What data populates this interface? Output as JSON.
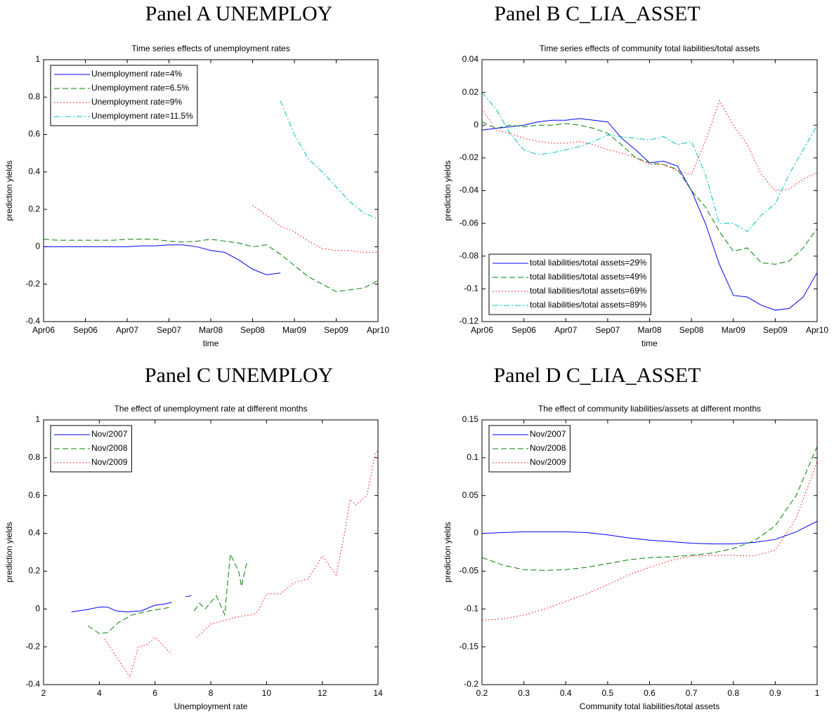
{
  "chart_data": [
    {
      "type": "line",
      "heading": "Panel A UNEMPLOY",
      "title": "Time series effects of unemployment rates",
      "xlabel": "time",
      "ylabel": "prediction yields",
      "legend": "upper left",
      "x": [
        1,
        3,
        5,
        7,
        9,
        11,
        13,
        15,
        17,
        19,
        21,
        23,
        25,
        27,
        29,
        31,
        33,
        35,
        37,
        39,
        41,
        43,
        45,
        47,
        49
      ],
      "xlim": [
        1,
        49
      ],
      "xticks": [
        {
          "value": 1,
          "label": "Apr06"
        },
        {
          "value": 7,
          "label": "Sep06"
        },
        {
          "value": 13,
          "label": "Apr07"
        },
        {
          "value": 19,
          "label": "Sep07"
        },
        {
          "value": 25,
          "label": "Mar08"
        },
        {
          "value": 31,
          "label": "Sep08"
        },
        {
          "value": 37,
          "label": "Mar09"
        },
        {
          "value": 43,
          "label": "Sep09"
        },
        {
          "value": 49,
          "label": "Apr10"
        }
      ],
      "ylim": [
        -0.4,
        1
      ],
      "yticks": [
        -0.4,
        -0.2,
        0,
        0.2,
        0.4,
        0.6,
        0.8,
        1
      ],
      "series": [
        {
          "name": "Unemployment rate=4%",
          "color": "#0000ff",
          "linestyle": "solid",
          "values": [
            0,
            0,
            0,
            0,
            0,
            0,
            0,
            0.005,
            0.005,
            0.01,
            0.01,
            0,
            -0.02,
            -0.03,
            -0.07,
            -0.12,
            -0.15,
            -0.14,
            null,
            null,
            null,
            null,
            null,
            null,
            null
          ]
        },
        {
          "name": "Unemployment rate=6.5%",
          "color": "#008000",
          "linestyle": "dashed",
          "values": [
            0.04,
            0.035,
            0.035,
            0.035,
            0.035,
            0.035,
            0.04,
            0.04,
            0.04,
            0.03,
            0.025,
            0.03,
            0.04,
            0.03,
            0.02,
            0,
            0.01,
            -0.04,
            -0.1,
            -0.16,
            -0.2,
            -0.24,
            -0.23,
            -0.22,
            -0.18
          ]
        },
        {
          "name": "Unemployment rate=9%",
          "color": "#ff0000",
          "linestyle": "dotted",
          "values": [
            null,
            null,
            null,
            null,
            null,
            null,
            null,
            null,
            null,
            null,
            null,
            null,
            null,
            null,
            null,
            0.22,
            0.17,
            0.11,
            0.08,
            0.03,
            -0.01,
            -0.02,
            -0.02,
            -0.03,
            -0.03
          ]
        },
        {
          "name": "Unemployment rate=11.5%",
          "color": "#00bfbf",
          "linestyle": "dashdot",
          "values": [
            null,
            null,
            null,
            null,
            null,
            null,
            null,
            null,
            null,
            null,
            null,
            null,
            null,
            null,
            null,
            null,
            null,
            0.78,
            0.6,
            0.47,
            0.4,
            0.32,
            0.24,
            0.18,
            0.15
          ]
        }
      ]
    },
    {
      "type": "line",
      "heading": "Panel B C_LIA_ASSET",
      "title": "Time series effects of community total liabilities/total assets",
      "xlabel": "time",
      "ylabel": "prediction yields",
      "legend": "lower left",
      "x": [
        1,
        3,
        5,
        7,
        9,
        11,
        13,
        15,
        17,
        19,
        21,
        23,
        25,
        27,
        29,
        31,
        33,
        35,
        37,
        39,
        41,
        43,
        45,
        47,
        49
      ],
      "xlim": [
        1,
        49
      ],
      "xticks": [
        {
          "value": 1,
          "label": "Apr06"
        },
        {
          "value": 7,
          "label": "Sep06"
        },
        {
          "value": 13,
          "label": "Apr07"
        },
        {
          "value": 19,
          "label": "Sep07"
        },
        {
          "value": 25,
          "label": "Mar08"
        },
        {
          "value": 31,
          "label": "Sep08"
        },
        {
          "value": 37,
          "label": "Mar09"
        },
        {
          "value": 43,
          "label": "Sep09"
        },
        {
          "value": 49,
          "label": "Apr10"
        }
      ],
      "ylim": [
        -0.12,
        0.04
      ],
      "yticks": [
        -0.12,
        -0.1,
        -0.08,
        -0.06,
        -0.04,
        -0.02,
        0,
        0.02,
        0.04
      ],
      "series": [
        {
          "name": "total liabilities/total assets=29%",
          "color": "#0000ff",
          "linestyle": "solid",
          "values": [
            -0.003,
            -0.002,
            -0.001,
            0,
            0.002,
            0.003,
            0.003,
            0.004,
            0.003,
            0.002,
            -0.008,
            -0.015,
            -0.023,
            -0.022,
            -0.025,
            -0.04,
            -0.06,
            -0.085,
            -0.104,
            -0.105,
            -0.11,
            -0.113,
            -0.112,
            -0.105,
            -0.09
          ]
        },
        {
          "name": "total liabilities/total assets=49%",
          "color": "#008000",
          "linestyle": "dashed",
          "values": [
            0.002,
            -0.002,
            0,
            -0.001,
            0,
            0,
            0.001,
            0,
            -0.002,
            -0.005,
            -0.012,
            -0.02,
            -0.023,
            -0.024,
            -0.027,
            -0.04,
            -0.05,
            -0.065,
            -0.077,
            -0.075,
            -0.084,
            -0.085,
            -0.083,
            -0.075,
            -0.063
          ]
        },
        {
          "name": "total liabilities/total assets=69%",
          "color": "#ff0000",
          "linestyle": "dotted",
          "values": [
            0.01,
            -0.003,
            -0.005,
            -0.008,
            -0.01,
            -0.011,
            -0.011,
            -0.01,
            -0.012,
            -0.015,
            -0.017,
            -0.02,
            -0.024,
            -0.024,
            -0.028,
            -0.03,
            -0.01,
            0.015,
            0,
            -0.012,
            -0.03,
            -0.04,
            -0.039,
            -0.033,
            -0.029
          ]
        },
        {
          "name": "total liabilities/total assets=89%",
          "color": "#00bfbf",
          "linestyle": "dashdot",
          "values": [
            0.02,
            0.01,
            -0.005,
            -0.015,
            -0.018,
            -0.017,
            -0.015,
            -0.013,
            -0.01,
            -0.006,
            -0.007,
            -0.008,
            -0.009,
            -0.007,
            -0.012,
            -0.01,
            -0.03,
            -0.06,
            -0.06,
            -0.065,
            -0.055,
            -0.048,
            -0.03,
            -0.015,
            0
          ]
        }
      ]
    },
    {
      "type": "line",
      "heading": "Panel C UNEMPLOY",
      "title": "The effect of unemployment rate at different months",
      "xlabel": "Unemployment rate",
      "ylabel": "prediction yields",
      "legend": "upper left",
      "xlim": [
        2,
        14
      ],
      "xticks": [
        2,
        4,
        6,
        8,
        10,
        12,
        14
      ],
      "ylim": [
        -0.4,
        1
      ],
      "yticks": [
        -0.4,
        -0.2,
        0,
        0.2,
        0.4,
        0.6,
        0.8,
        1
      ],
      "series": [
        {
          "name": "Nov/2007",
          "color": "#0000ff",
          "linestyle": "solid",
          "x": [
            3,
            3.5,
            4,
            4.3,
            4.6,
            5,
            5.5,
            6,
            6.3,
            6.6,
            null,
            7.1,
            7.3
          ],
          "values": [
            -0.015,
            -0.005,
            0.01,
            0.01,
            -0.01,
            -0.015,
            -0.01,
            0.02,
            0.025,
            0.035,
            null,
            0.065,
            0.07
          ]
        },
        {
          "name": "Nov/2008",
          "color": "#008000",
          "linestyle": "dashed",
          "x": [
            3.6,
            4,
            4.3,
            4.7,
            5.2,
            5.8,
            6.2,
            6.6,
            null,
            7.4,
            7.6,
            7.8,
            8.2,
            8.5,
            8.7,
            9,
            9.1,
            9.3
          ],
          "values": [
            -0.09,
            -0.13,
            -0.125,
            -0.07,
            -0.03,
            -0.01,
            0,
            0.01,
            null,
            -0.01,
            0.03,
            0,
            0.07,
            -0.03,
            0.29,
            0.2,
            0.12,
            0.25
          ]
        },
        {
          "name": "Nov/2009",
          "color": "#ff0000",
          "linestyle": "dotted",
          "x": [
            4.2,
            4.6,
            5.1,
            5.4,
            5.7,
            6,
            6.6,
            null,
            7.5,
            8,
            8.5,
            9,
            9.5,
            9.7,
            10,
            10.5,
            11,
            11.5,
            12,
            12.5,
            12.8,
            13,
            13.2,
            13.6,
            13.9,
            14
          ],
          "values": [
            -0.16,
            -0.25,
            -0.36,
            -0.2,
            -0.19,
            -0.15,
            -0.24,
            null,
            -0.15,
            -0.08,
            -0.06,
            -0.04,
            -0.03,
            -0.01,
            0.08,
            0.08,
            0.14,
            0.16,
            0.28,
            0.18,
            0.4,
            0.58,
            0.55,
            0.6,
            0.82,
            0.84
          ]
        }
      ]
    },
    {
      "type": "line",
      "heading": "Panel D C_LIA_ASSET",
      "title": "The effect of community liabilities/assets at different months",
      "xlabel": "Community total liabilities/total assets",
      "ylabel": "prediction yields",
      "legend": "upper left",
      "x": [
        0.2,
        0.25,
        0.3,
        0.35,
        0.4,
        0.45,
        0.5,
        0.55,
        0.6,
        0.65,
        0.7,
        0.75,
        0.8,
        0.85,
        0.9,
        0.95,
        1
      ],
      "xlim": [
        0.2,
        1
      ],
      "xticks": [
        0.2,
        0.3,
        0.4,
        0.5,
        0.6,
        0.7,
        0.8,
        0.9,
        1
      ],
      "ylim": [
        -0.2,
        0.15
      ],
      "yticks": [
        -0.2,
        -0.15,
        -0.1,
        -0.05,
        0,
        0.05,
        0.1,
        0.15
      ],
      "series": [
        {
          "name": "Nov/2007",
          "color": "#0000ff",
          "linestyle": "solid",
          "values": [
            0,
            0.001,
            0.002,
            0.002,
            0.002,
            0.001,
            -0.002,
            -0.006,
            -0.009,
            -0.011,
            -0.013,
            -0.014,
            -0.014,
            -0.012,
            -0.008,
            0.002,
            0.016
          ]
        },
        {
          "name": "Nov/2008",
          "color": "#008000",
          "linestyle": "dashed",
          "values": [
            -0.032,
            -0.042,
            -0.048,
            -0.049,
            -0.048,
            -0.045,
            -0.04,
            -0.035,
            -0.032,
            -0.031,
            -0.029,
            -0.026,
            -0.02,
            -0.01,
            0.01,
            0.05,
            0.115
          ]
        },
        {
          "name": "Nov/2009",
          "color": "#ff0000",
          "linestyle": "dotted",
          "values": [
            -0.115,
            -0.113,
            -0.108,
            -0.1,
            -0.09,
            -0.08,
            -0.068,
            -0.055,
            -0.045,
            -0.036,
            -0.03,
            -0.029,
            -0.029,
            -0.03,
            -0.022,
            0.02,
            0.095
          ]
        }
      ]
    }
  ]
}
